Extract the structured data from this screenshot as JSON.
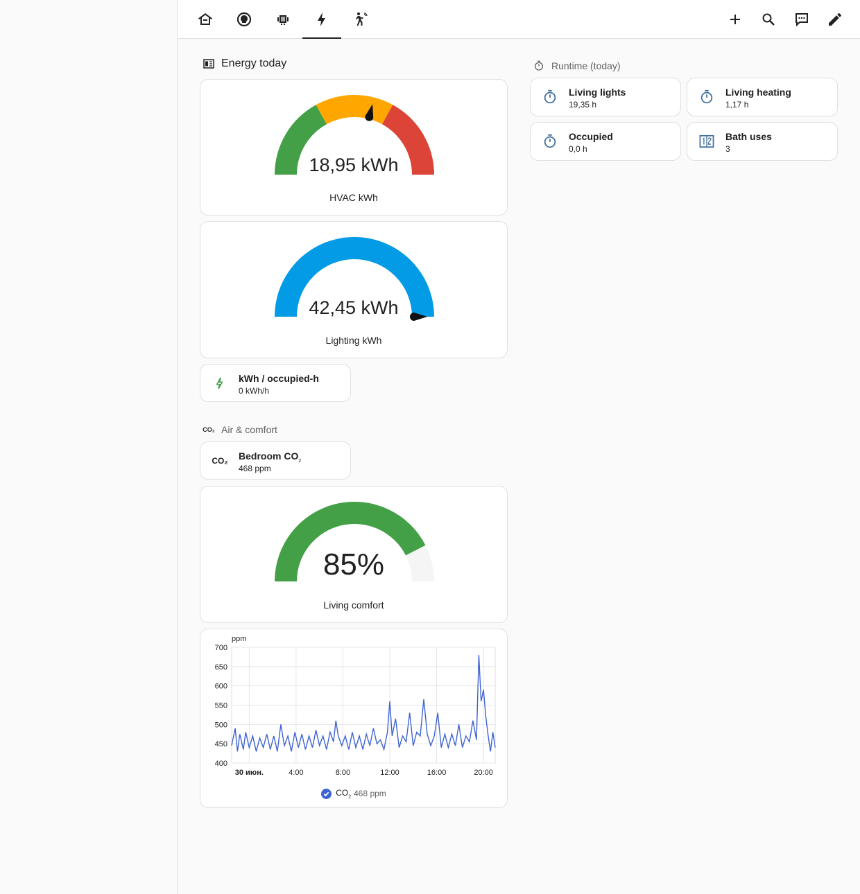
{
  "nav": {
    "tabs": [
      {
        "name": "home",
        "icon": "home-icon",
        "active": false
      },
      {
        "name": "lightbulb",
        "icon": "lightbulb-icon",
        "active": false
      },
      {
        "name": "heater",
        "icon": "heater-icon",
        "active": false
      },
      {
        "name": "energy",
        "icon": "lightning-bolt-icon",
        "active": true
      },
      {
        "name": "motion",
        "icon": "motion-sensor-icon",
        "active": false
      }
    ],
    "actions": [
      "plus-icon",
      "search-icon",
      "assist-chat-icon",
      "pencil-icon"
    ]
  },
  "energy_section": {
    "title": "Energy today",
    "icon": "meter-electric-icon",
    "hvac_gauge": {
      "value": "18,95 kWh",
      "name": "HVAC kWh",
      "fraction": 0.58,
      "colors": [
        "#43a047",
        "#ffa600",
        "#db4437"
      ]
    },
    "lighting_gauge": {
      "value": "42,45 kWh",
      "name": "Lighting kWh",
      "fraction": 1.0,
      "color": "#039be5"
    },
    "kwh_tile": {
      "name": "kWh / occupied-h",
      "value": "0 kWh/h",
      "icon": "flash-icon",
      "icon_color": "#43a047"
    }
  },
  "air_section": {
    "title": "Air & comfort",
    "icon": "molecule-co2-icon",
    "co2_tile": {
      "name": "Bedroom CO",
      "sub": "2",
      "value": "468 ppm",
      "icon": "molecule-co2-icon"
    },
    "comfort_gauge": {
      "value": "85%",
      "name": "Living comfort",
      "fraction": 0.85,
      "color": "#43a047"
    }
  },
  "runtime_section": {
    "title": "Runtime (today)",
    "icon": "timer-outline-icon",
    "tiles": [
      {
        "name": "Living lights",
        "value": "19,35 h",
        "icon": "timer-outline-icon"
      },
      {
        "name": "Living heating",
        "value": "1,17 h",
        "icon": "timer-outline-icon"
      },
      {
        "name": "Occupied",
        "value": "0,0 h",
        "icon": "timer-outline-icon"
      },
      {
        "name": "Bath uses",
        "value": "3",
        "icon": "counter-icon"
      }
    ]
  },
  "chart_data": {
    "type": "line",
    "ylabel": "ppm",
    "ylim": [
      400,
      700
    ],
    "yticks": [
      "700",
      "650",
      "600",
      "550",
      "500",
      "450",
      "400"
    ],
    "xticks": [
      "30 июн.",
      "4:00",
      "8:00",
      "12:00",
      "16:00",
      "20:00"
    ],
    "xlim_hours": [
      -1.5,
      21.0
    ],
    "grid": true,
    "color": "#3e63d2",
    "legend": {
      "label": "CO",
      "sub": "2",
      "value": "468 ppm",
      "placement": "bottom"
    },
    "series": [
      {
        "name": "CO2",
        "x": [
          -1.5,
          -1.2,
          -1.0,
          -0.8,
          -0.5,
          -0.3,
          0,
          0.3,
          0.6,
          0.9,
          1.2,
          1.5,
          1.8,
          2.1,
          2.4,
          2.7,
          3.0,
          3.3,
          3.6,
          3.9,
          4.2,
          4.5,
          4.8,
          5.1,
          5.4,
          5.7,
          6.0,
          6.3,
          6.6,
          6.9,
          7.2,
          7.4,
          7.6,
          7.9,
          8.2,
          8.5,
          8.8,
          9.1,
          9.4,
          9.7,
          10.0,
          10.3,
          10.6,
          10.9,
          11.2,
          11.5,
          11.8,
          12.0,
          12.2,
          12.5,
          12.8,
          13.1,
          13.4,
          13.7,
          14.0,
          14.3,
          14.6,
          14.9,
          15.2,
          15.5,
          15.8,
          16.1,
          16.4,
          16.7,
          17.0,
          17.3,
          17.6,
          17.9,
          18.2,
          18.5,
          18.8,
          19.1,
          19.4,
          19.6,
          19.8,
          20.0,
          20.2,
          20.4,
          20.6,
          20.8,
          21.0
        ],
        "y": [
          445,
          490,
          430,
          475,
          435,
          480,
          440,
          470,
          430,
          465,
          440,
          475,
          435,
          470,
          430,
          500,
          445,
          470,
          430,
          480,
          440,
          475,
          435,
          470,
          440,
          485,
          445,
          470,
          435,
          480,
          455,
          510,
          470,
          445,
          470,
          435,
          480,
          440,
          470,
          435,
          475,
          445,
          490,
          450,
          460,
          435,
          480,
          560,
          470,
          515,
          440,
          470,
          455,
          530,
          445,
          480,
          470,
          565,
          475,
          445,
          470,
          530,
          440,
          475,
          440,
          475,
          445,
          500,
          440,
          470,
          455,
          510,
          460,
          680,
          560,
          590,
          520,
          470,
          430,
          480,
          440
        ]
      }
    ]
  }
}
